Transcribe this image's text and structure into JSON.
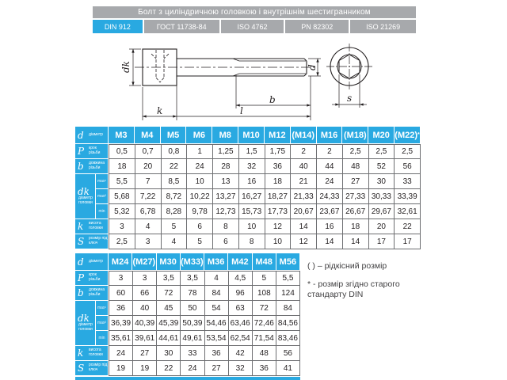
{
  "title": {
    "text": "Болт з циліндричною головкою і внутрішнім шестигранником"
  },
  "standards": {
    "items": [
      "DIN 912",
      "ГОСТ 11738-84",
      "ISO 4762",
      "PN 82302",
      "ISO 21269"
    ],
    "active": "DIN 912"
  },
  "colors": {
    "accent": "#29a9e1",
    "gray": "#a7a9ac",
    "line": "#6d6e71",
    "ink": "#231f20"
  },
  "drawing": {
    "dim_labels": {
      "dk": "dk",
      "k": "k",
      "l": "l",
      "b": "b",
      "d": "d",
      "s": "s"
    }
  },
  "row_labels": {
    "d": {
      "sym": "d",
      "desc": "діаметр"
    },
    "P": {
      "sym": "P",
      "desc": "крок різьби"
    },
    "b": {
      "sym": "b",
      "desc": "довжина різьби"
    },
    "dk": {
      "sym": "dk",
      "desc": "діаметр головки",
      "subs": [
        "max¹",
        "max²",
        "min"
      ]
    },
    "k": {
      "sym": "k",
      "desc": "висота головки"
    },
    "S": {
      "sym": "S",
      "desc": "розмір під ключ"
    }
  },
  "table1": {
    "sizes": [
      "M3",
      "M4",
      "M5",
      "M6",
      "M8",
      "M10",
      "M12",
      "(M14)",
      "M16",
      "(M18)",
      "M20",
      "(M22)*"
    ],
    "P": [
      "0,5",
      "0,7",
      "0,8",
      "1",
      "1,25",
      "1,5",
      "1,75",
      "2",
      "2",
      "2,5",
      "2,5",
      "2,5"
    ],
    "b": [
      "18",
      "20",
      "22",
      "24",
      "28",
      "32",
      "36",
      "40",
      "44",
      "48",
      "52",
      "56"
    ],
    "dk_max1": [
      "5,5",
      "7",
      "8,5",
      "10",
      "13",
      "16",
      "18",
      "21",
      "24",
      "27",
      "30",
      "33"
    ],
    "dk_max2": [
      "5,68",
      "7,22",
      "8,72",
      "10,22",
      "13,27",
      "16,27",
      "18,27",
      "21,33",
      "24,33",
      "27,33",
      "30,33",
      "33,39"
    ],
    "dk_min": [
      "5,32",
      "6,78",
      "8,28",
      "9,78",
      "12,73",
      "15,73",
      "17,73",
      "20,67",
      "23,67",
      "26,67",
      "29,67",
      "32,61"
    ],
    "k": [
      "3",
      "4",
      "5",
      "6",
      "8",
      "10",
      "12",
      "14",
      "16",
      "18",
      "20",
      "22"
    ],
    "S": [
      "2,5",
      "3",
      "4",
      "5",
      "6",
      "8",
      "10",
      "12",
      "14",
      "14",
      "17",
      "17"
    ]
  },
  "table2": {
    "sizes": [
      "M24",
      "(M27)",
      "M30",
      "(M33)",
      "M36",
      "M42",
      "M48",
      "M56"
    ],
    "P": [
      "3",
      "3",
      "3,5",
      "3,5",
      "4",
      "4,5",
      "5",
      "5,5"
    ],
    "b": [
      "60",
      "66",
      "72",
      "78",
      "84",
      "96",
      "108",
      "124"
    ],
    "dk_max1": [
      "36",
      "40",
      "45",
      "50",
      "54",
      "63",
      "72",
      "84"
    ],
    "dk_max2": [
      "36,39",
      "40,39",
      "45,39",
      "50,39",
      "54,46",
      "63,46",
      "72,46",
      "84,56"
    ],
    "dk_min": [
      "35,61",
      "39,61",
      "44,61",
      "49,61",
      "53,54",
      "62,54",
      "71,54",
      "83,46"
    ],
    "k": [
      "24",
      "27",
      "30",
      "33",
      "36",
      "42",
      "48",
      "56"
    ],
    "S": [
      "19",
      "19",
      "22",
      "24",
      "27",
      "32",
      "36",
      "41"
    ]
  },
  "notes": {
    "rare": "( ) – рідкісний розмір",
    "old_din": "* - розмір згідно старого стандарту DIN"
  }
}
